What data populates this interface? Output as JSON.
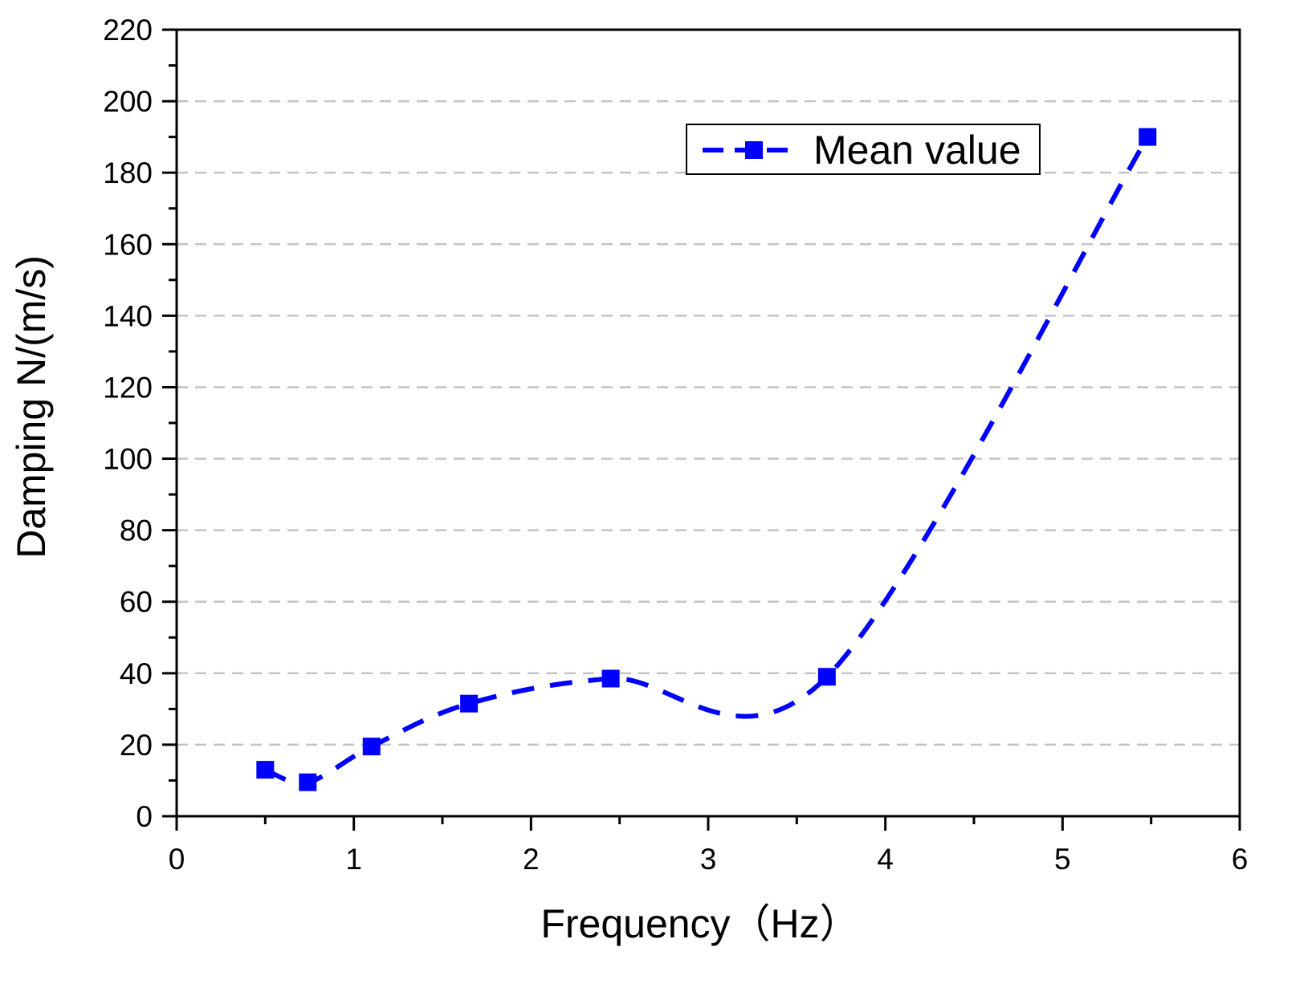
{
  "chart_data": {
    "type": "line",
    "title": "",
    "xlabel": "Frequency（Hz）",
    "ylabel": "Damping   N/(m/s)",
    "xlim": [
      0,
      6
    ],
    "ylim": [
      0,
      220
    ],
    "x_ticks": [
      "0",
      "1",
      "2",
      "3",
      "4",
      "5",
      "6"
    ],
    "y_ticks": [
      "0",
      "20",
      "40",
      "60",
      "80",
      "100",
      "120",
      "140",
      "160",
      "180",
      "200",
      "220"
    ],
    "grid": "horizontal dashed",
    "legend_position": "top-right",
    "series": [
      {
        "name": "Mean value",
        "color": "#0000ff",
        "line_style": "dashed",
        "marker": "square",
        "x": [
          0.5,
          0.74,
          1.1,
          1.65,
          2.45,
          3.67,
          5.48
        ],
        "y": [
          13,
          9.5,
          19.5,
          31.5,
          38.5,
          39,
          190
        ]
      }
    ]
  }
}
